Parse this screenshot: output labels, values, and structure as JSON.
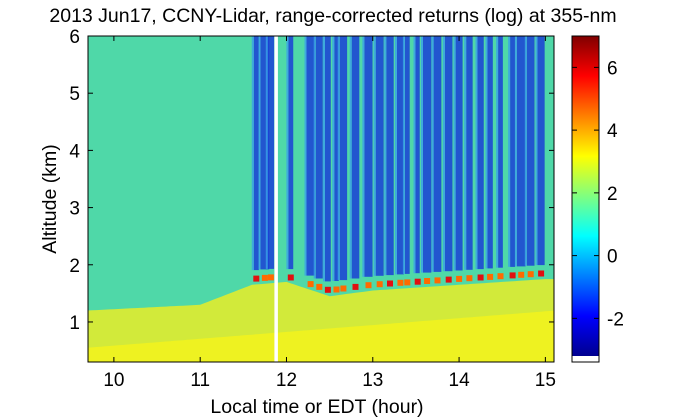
{
  "chart_data": {
    "type": "heatmap",
    "title": "2013 Jun17, CCNY-Lidar, range-corrected returns (log) at 355-nm",
    "xlabel": "Local time or EDT (hour)",
    "ylabel": "Altitude (km)",
    "xlim": [
      9.7,
      15.1
    ],
    "ylim": [
      0.3,
      6.0
    ],
    "x_ticks": [
      "10",
      "11",
      "12",
      "13",
      "14",
      "15"
    ],
    "y_ticks": [
      "1",
      "2",
      "3",
      "4",
      "5",
      "6"
    ],
    "colorbar": {
      "range": [
        -3.2,
        7.0
      ],
      "colormap": "jet",
      "ticks": [
        "-2",
        "0",
        "2",
        "4",
        "6"
      ]
    },
    "data_gap_hours": [
      11.86,
      11.9
    ],
    "boundary_layer_top_km": [
      [
        9.7,
        1.2
      ],
      [
        11.0,
        1.3
      ],
      [
        11.6,
        1.65
      ],
      [
        12.0,
        1.7
      ],
      [
        12.5,
        1.45
      ],
      [
        13.0,
        1.55
      ],
      [
        13.5,
        1.6
      ],
      [
        14.0,
        1.65
      ],
      [
        14.5,
        1.7
      ],
      [
        15.0,
        1.75
      ]
    ],
    "cloud_clear_columns_hours": [
      11.65,
      11.75,
      11.82,
      12.05,
      12.28,
      12.38,
      12.48,
      12.58,
      12.66,
      12.8,
      12.95,
      13.08,
      13.2,
      13.32,
      13.4,
      13.52,
      13.63,
      13.75,
      13.88,
      14.0,
      14.12,
      14.25,
      14.36,
      14.48,
      14.62,
      14.72,
      14.83,
      14.95
    ]
  }
}
